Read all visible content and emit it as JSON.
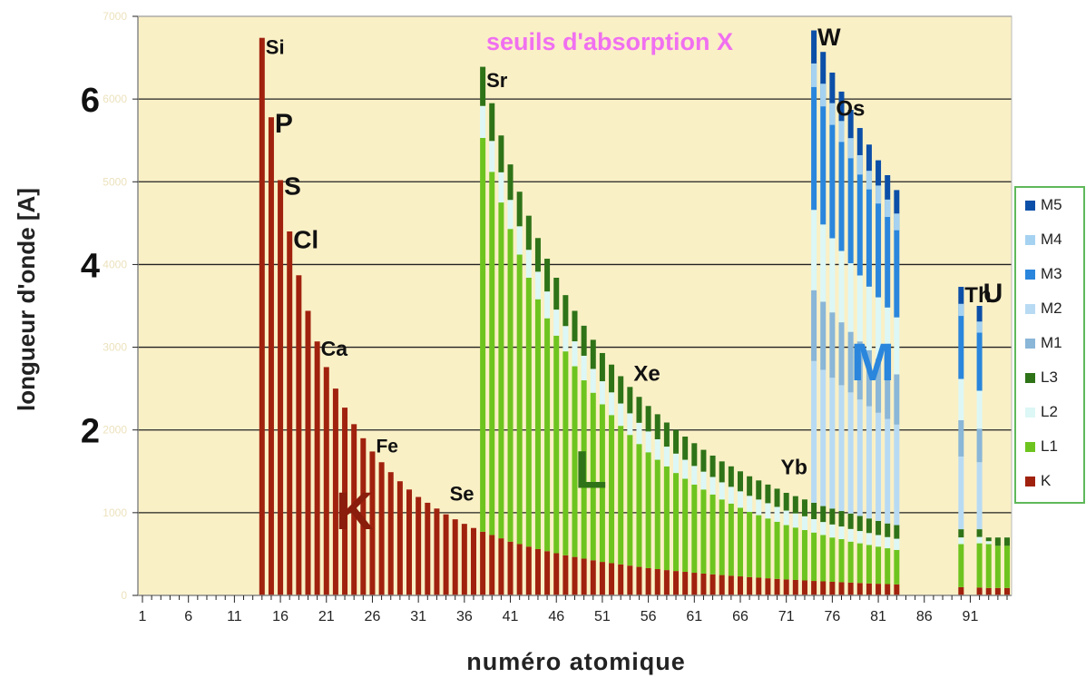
{
  "chart_data": {
    "type": "bar",
    "stacked": true,
    "title": "seuils d'absorption X",
    "xlabel": "numéro atomique",
    "ylabel": "longueur d'onde [A]",
    "x_ticks": [
      "1",
      "6",
      "11",
      "16",
      "21",
      "26",
      "31",
      "36",
      "41",
      "46",
      "51",
      "56",
      "61",
      "66",
      "71",
      "76",
      "81",
      "86",
      "91"
    ],
    "y_major_ticks": [
      "2",
      "4",
      "6"
    ],
    "y_minor_ticks": [
      "0",
      "1000",
      "2000",
      "3000",
      "4000",
      "5000",
      "6000",
      "7000"
    ],
    "ylim": [
      0,
      7000
    ],
    "xlim": [
      1,
      95
    ],
    "grid": true,
    "legend_position": "right",
    "legend": [
      "M5",
      "M4",
      "M3",
      "M2",
      "M1",
      "L3",
      "L2",
      "L1",
      "K"
    ],
    "colors": {
      "K": "#a0220e",
      "L1": "#6ec41f",
      "L2": "#dcf7f5",
      "L3": "#2f7318",
      "M1": "#8ab6d8",
      "M2": "#b8dbf3",
      "M3": "#2a86dc",
      "M4": "#a6d2f1",
      "M5": "#0c4fa8",
      "plot_bg": "#faf0c6",
      "title": "#f070f0"
    },
    "element_labels": [
      {
        "text": "Si",
        "x": 14,
        "y": 6700
      },
      {
        "text": "P",
        "x": 15,
        "y": 5750
      },
      {
        "text": "S",
        "x": 16,
        "y": 5000
      },
      {
        "text": "Cl",
        "x": 17,
        "y": 4350
      },
      {
        "text": "Ca",
        "x": 20,
        "y": 3050
      },
      {
        "text": "Fe",
        "x": 26,
        "y": 1880
      },
      {
        "text": "Se",
        "x": 34,
        "y": 1300
      },
      {
        "text": "Sr",
        "x": 38,
        "y": 6300
      },
      {
        "text": "Xe",
        "x": 54,
        "y": 2750
      },
      {
        "text": "Yb",
        "x": 70,
        "y": 1620
      },
      {
        "text": "W",
        "x": 74,
        "y": 6800
      },
      {
        "text": "Os",
        "x": 76,
        "y": 5950
      },
      {
        "text": "Th",
        "x": 90,
        "y": 3700
      },
      {
        "text": "U",
        "x": 92,
        "y": 3700
      }
    ],
    "region_labels": [
      {
        "text": "K",
        "x": 22,
        "y": 1000
      },
      {
        "text": "L",
        "x": 48,
        "y": 1500
      },
      {
        "text": "M",
        "x": 78,
        "y": 2800
      }
    ],
    "series": {
      "K": {
        "x": [
          14,
          15,
          16,
          17,
          18,
          19,
          20,
          21,
          22,
          23,
          24,
          25,
          26,
          27,
          28,
          29,
          30,
          31,
          32,
          33,
          34,
          35,
          36,
          37,
          38,
          39,
          40,
          41,
          42,
          43,
          44,
          45,
          46,
          47,
          48,
          49,
          50,
          51,
          52,
          53,
          54,
          55,
          56,
          57,
          58,
          59,
          60,
          61,
          62,
          63,
          64,
          65,
          66,
          67,
          68,
          69,
          70,
          71,
          72,
          73,
          74,
          75,
          76,
          77,
          78,
          79,
          80,
          81,
          82,
          83,
          90,
          92,
          93
        ],
        "y": [
          6740,
          5780,
          5020,
          4400,
          3870,
          3440,
          3070,
          2760,
          2500,
          2270,
          2070,
          1900,
          1740,
          1610,
          1490,
          1380,
          1280,
          1190,
          1120,
          1050,
          980,
          920,
          865,
          815,
          770,
          730,
          690,
          650,
          620,
          590,
          560,
          535,
          510,
          485,
          465,
          445,
          425,
          405,
          390,
          375,
          360,
          345,
          330,
          318,
          306,
          295,
          285,
          274,
          264,
          255,
          246,
          238,
          230,
          222,
          214,
          207,
          200,
          193,
          187,
          181,
          175,
          170,
          165,
          160,
          155,
          150,
          145,
          141,
          137,
          133,
          100,
          95,
          90
        ]
      },
      "L1": {
        "x": [
          38,
          39,
          40,
          41,
          42,
          43,
          44,
          45,
          46,
          47,
          48,
          49,
          50,
          51,
          52,
          53,
          54,
          55,
          56,
          57,
          58,
          59,
          60,
          61,
          62,
          63,
          64,
          65,
          66,
          67,
          68,
          69,
          70,
          71,
          72,
          73,
          74,
          75,
          76,
          77,
          78,
          79,
          80,
          81,
          82,
          83,
          90,
          92,
          93
        ],
        "y": [
          5530,
          5120,
          4750,
          4430,
          4120,
          3840,
          3580,
          3350,
          3140,
          2950,
          2770,
          2600,
          2450,
          2310,
          2180,
          2050,
          1940,
          1830,
          1730,
          1640,
          1560,
          1480,
          1410,
          1340,
          1280,
          1220,
          1160,
          1110,
          1060,
          1010,
          970,
          930,
          890,
          850,
          820,
          790,
          760,
          730,
          700,
          680,
          650,
          630,
          610,
          590,
          570,
          550,
          620,
          630,
          620
        ]
      },
      "L3": {
        "x": [
          38,
          39,
          40,
          41,
          42,
          43,
          44,
          45,
          46,
          47,
          48,
          49,
          50,
          51,
          52,
          53,
          54,
          55,
          56,
          57,
          58,
          59,
          60,
          61,
          62,
          63,
          64,
          65,
          66,
          67,
          68,
          69,
          70,
          71,
          72,
          73,
          74,
          75,
          76,
          77,
          78,
          79,
          80,
          81,
          82,
          83,
          90,
          92,
          93
        ],
        "y": [
          6390,
          5950,
          5560,
          5210,
          4880,
          4590,
          4320,
          4070,
          3840,
          3630,
          3440,
          3260,
          3090,
          2930,
          2790,
          2650,
          2520,
          2400,
          2290,
          2190,
          2090,
          2000,
          1920,
          1840,
          1760,
          1690,
          1620,
          1560,
          1500,
          1440,
          1390,
          1340,
          1290,
          1240,
          1200,
          1160,
          1120,
          1080,
          1050,
          1020,
          990,
          960,
          930,
          900,
          870,
          850,
          800,
          800,
          700
        ]
      },
      "M5": {
        "x": [
          74,
          75,
          76,
          77,
          78,
          79,
          80,
          81,
          82,
          83,
          90,
          92
        ],
        "y": [
          6830,
          6570,
          6320,
          6090,
          5870,
          5650,
          5450,
          5260,
          5080,
          4900,
          3730,
          3500
        ]
      }
    }
  }
}
